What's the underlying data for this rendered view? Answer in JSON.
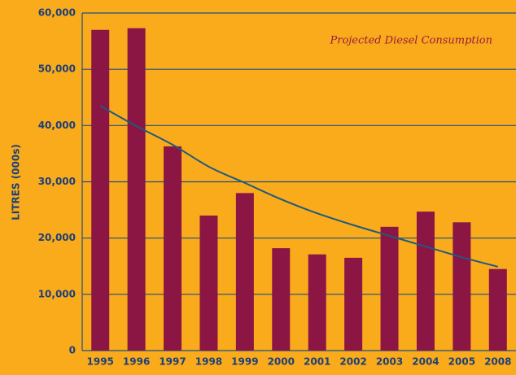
{
  "chart_data": {
    "type": "bar",
    "y_label": "LITRES (000s)",
    "annotation": "Projected Diesel Consumption",
    "categories": [
      "1995",
      "1996",
      "1997",
      "1998",
      "1999",
      "2000",
      "2001",
      "2002",
      "2003",
      "2004",
      "2005",
      "2008"
    ],
    "values": [
      57000,
      57300,
      36300,
      24000,
      28000,
      18200,
      17100,
      16500,
      22000,
      24700,
      22800,
      14500
    ],
    "color": "#8b1543",
    "trend": {
      "color": "#1f5a80",
      "values": [
        43500,
        39900,
        36600,
        32700,
        29800,
        26900,
        24400,
        22300,
        20400,
        18500,
        16600,
        14900
      ]
    },
    "ylim": [
      0,
      60000
    ],
    "yticks": [
      0,
      {
        "value": 10000,
        "label": "10,000"
      },
      {
        "value": 20000,
        "label": "20,000"
      },
      {
        "value": 30000,
        "label": "30,000"
      },
      {
        "value": 40000,
        "label": "40,000"
      },
      {
        "value": 50000,
        "label": "50,000"
      },
      {
        "value": 60000,
        "label": "60,000"
      }
    ],
    "grid": true
  }
}
